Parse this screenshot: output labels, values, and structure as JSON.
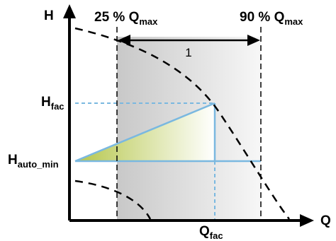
{
  "axes": {
    "y_label": "H",
    "x_label": "Q"
  },
  "band": {
    "left_label": {
      "prefix": "25 % Q",
      "sub": "max"
    },
    "right_label": {
      "prefix": "90 % Q",
      "sub": "max"
    },
    "range_number": "1"
  },
  "levels": {
    "h_fac": {
      "base": "H",
      "sub": "fac"
    },
    "h_auto_min": {
      "base": "H",
      "sub": "auto_min"
    },
    "q_fac": {
      "base": "Q",
      "sub": "fac"
    }
  },
  "colors": {
    "axis": "#000000",
    "dashed_curve": "#000000",
    "guide_lines": "#7ab8e0",
    "solid_lines": "#7ab8e0",
    "band_fill_left": "#c8c8c8",
    "band_fill_right": "#f7f7f7",
    "triangle_fill_left": "#b5c64a",
    "triangle_fill_right": "#ffffff"
  }
}
